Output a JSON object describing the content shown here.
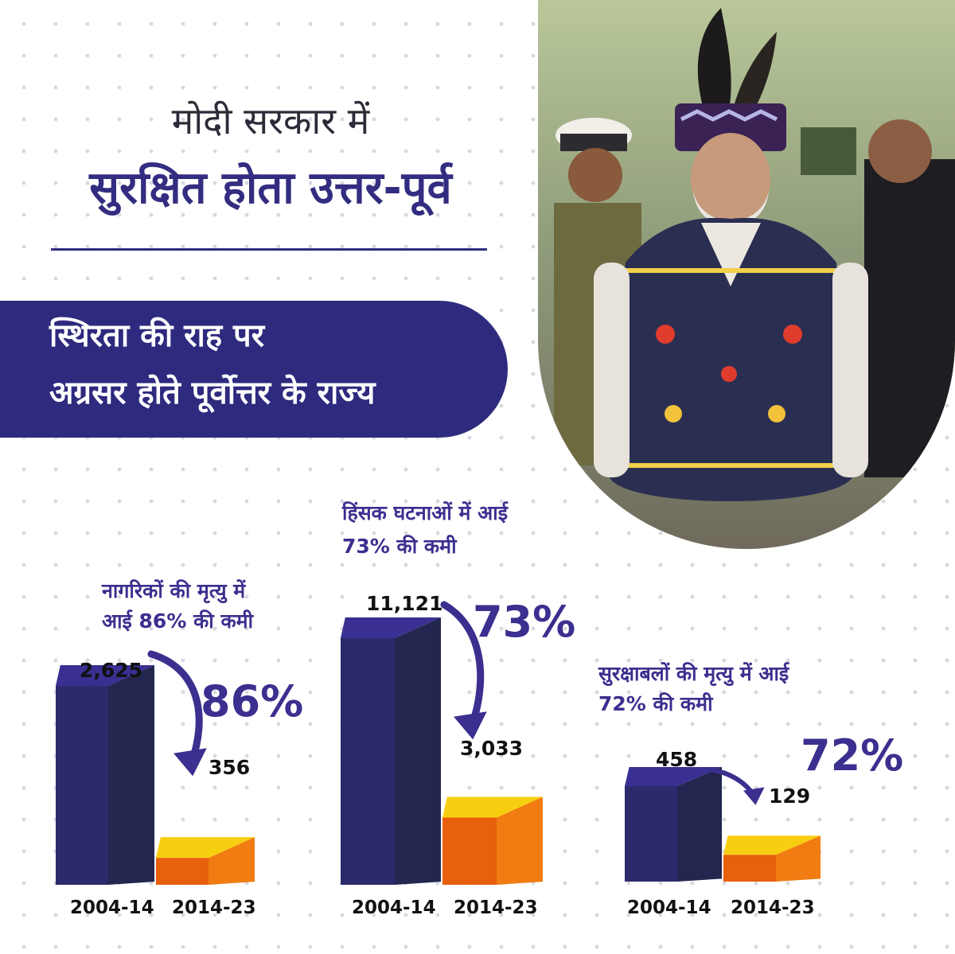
{
  "header": {
    "line1": "मोदी सरकार में",
    "line2": "सुरक्षित होता उत्तर-पूर्व"
  },
  "banner": {
    "line1": "स्थिरता की राह पर",
    "line2": "अग्रसर होते पूर्वोत्तर के राज्य"
  },
  "colors": {
    "navy": "#2e2a7e",
    "purple_text": "#3b2f8f",
    "bar_old_front": "#2b2a6b",
    "bar_old_side": "#23264f",
    "bar_old_top": "#3a2f92",
    "bar_new_front": "#f07c12",
    "bar_new_side": "#e85f0c",
    "bar_new_top": "#f8cf10"
  },
  "chart_data": [
    {
      "type": "bar",
      "title": "नागरिकों की मृत्यु में आई 86% की कमी",
      "title_lines": [
        "नागरिकों की मृत्यु में",
        "आई 86% की कमी"
      ],
      "categories": [
        "2004-14",
        "2014-23"
      ],
      "values": [
        2625,
        356
      ],
      "value_labels": [
        "2,625",
        "356"
      ],
      "reduction_label": "86%"
    },
    {
      "type": "bar",
      "title": "हिंसक घटनाओं में आई 73% की कमी",
      "title_lines": [
        "हिंसक घटनाओं में आई",
        "73% की कमी"
      ],
      "categories": [
        "2004-14",
        "2014-23"
      ],
      "values": [
        11121,
        3033
      ],
      "value_labels": [
        "11,121",
        "3,033"
      ],
      "reduction_label": "73%"
    },
    {
      "type": "bar",
      "title": "सुरक्षाबलों की मृत्यु में आई 72% की कमी",
      "title_lines": [
        "सुरक्षाबलों की मृत्यु में आई",
        "72% की कमी"
      ],
      "categories": [
        "2004-14",
        "2014-23"
      ],
      "values": [
        458,
        129
      ],
      "value_labels": [
        "458",
        "129"
      ],
      "reduction_label": "72%"
    }
  ]
}
